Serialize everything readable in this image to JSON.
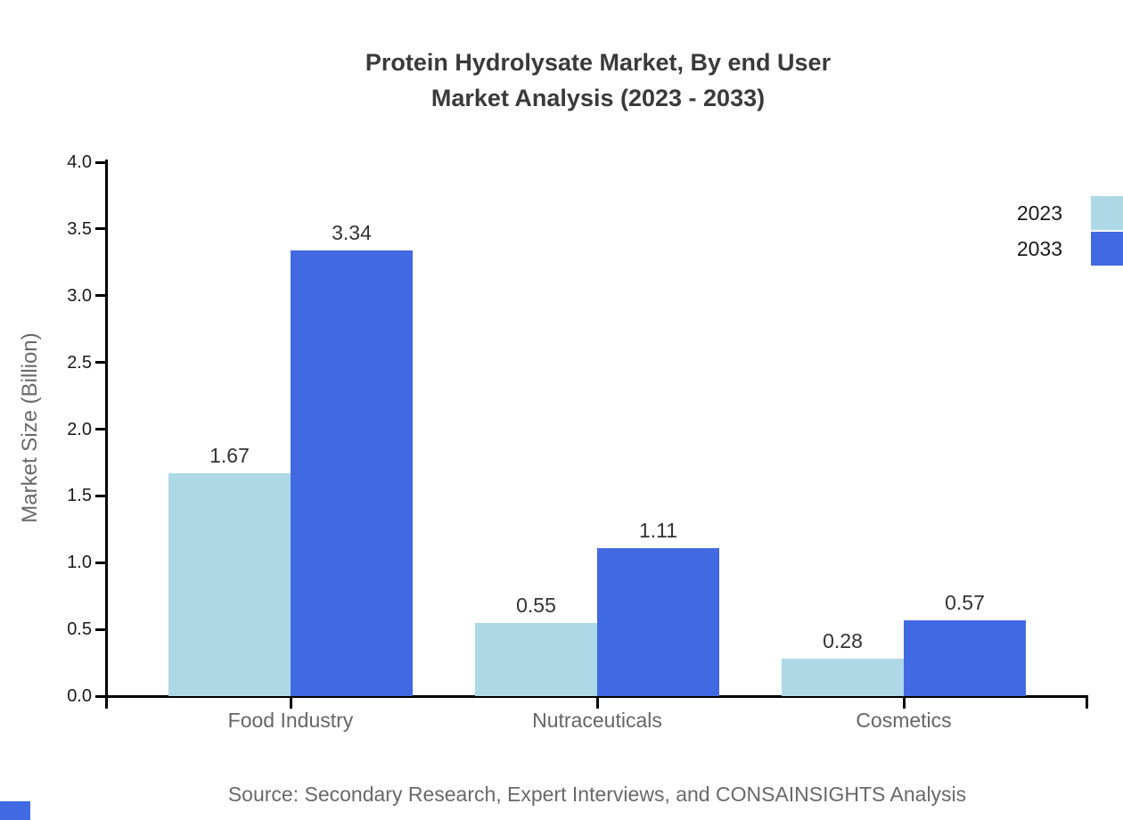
{
  "title": {
    "line1": "Protein Hydrolysate Market, By end User",
    "line2": "Market Analysis (2023 - 2033)"
  },
  "chart_data": {
    "type": "bar",
    "categories": [
      "Food Industry",
      "Nutraceuticals",
      "Cosmetics"
    ],
    "series": [
      {
        "name": "2023",
        "color": "#add8e6",
        "values": [
          1.67,
          0.55,
          0.28
        ]
      },
      {
        "name": "2033",
        "color": "#4169e1",
        "values": [
          3.34,
          1.11,
          0.57
        ]
      }
    ],
    "title": "Protein Hydrolysate Market, By end User Market Analysis (2023 - 2033)",
    "xlabel": "",
    "ylabel": "Market Size (Billion)",
    "ylim": [
      0,
      4
    ],
    "ytick_step": 0.5,
    "yticks": [
      "0.0",
      "0.5",
      "1.0",
      "1.5",
      "2.0",
      "2.5",
      "3.0",
      "3.5",
      "4.0"
    ],
    "grid": false,
    "legend_position": "top-right",
    "value_labels": [
      "1.67",
      "3.34",
      "0.55",
      "1.11",
      "0.28",
      "0.57"
    ]
  },
  "source": "Source: Secondary Research, Expert Interviews, and CONSAINSIGHTS Analysis",
  "colors": {
    "series_2023": "#add8e6",
    "series_2033": "#4169e1",
    "axis": "#000000",
    "title_text": "#3a3a3a",
    "tick_text": "#1a1a1a",
    "category_text": "#666666",
    "muted_text": "#696969",
    "corner_mark": "#4169e1"
  }
}
